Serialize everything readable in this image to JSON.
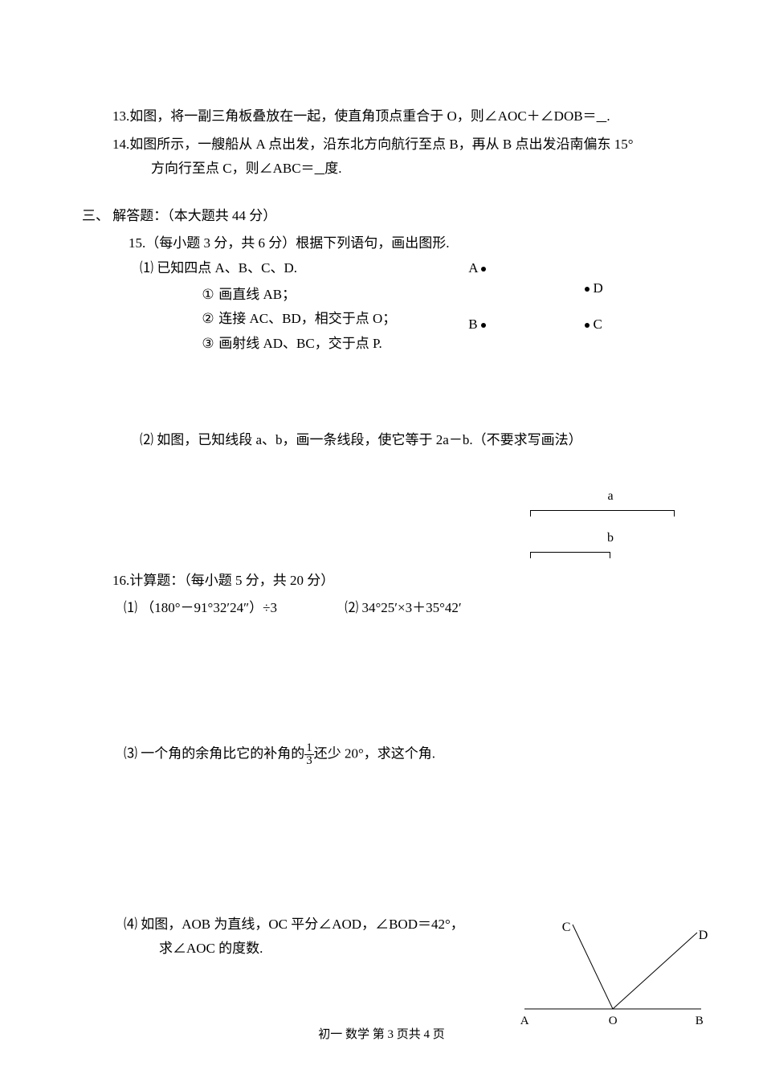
{
  "p13": "13.如图，将一副三角板叠放在一起，使直角顶点重合于 O，则∠AOC＋∠DOB＝",
  "p13_blank": "   ",
  "p13_end": ".",
  "p14_line1": "14.如图所示，一艘船从 A 点出发，沿东北方向航行至点 B，再从 B 点出发沿南偏东 15°",
  "p14_line2": "方向行至点 C，则∠ABC＝",
  "p14_blank": "   ",
  "p14_end": "度.",
  "section3": "三、    解答题：（本大题共 44 分）",
  "p15": "15.（每小题 3 分，共 6 分）根据下列语句，画出图形.",
  "p15_sub1": "⑴ 已知四点 A、B、C、D.",
  "p15_item1_num": "①",
  "p15_item1": " 画直线 AB；",
  "p15_item2_num": "②",
  "p15_item2": " 连接 AC、BD，相交于点 O；",
  "p15_item3_num": "③",
  "p15_item3": " 画射线 AD、BC，交于点 P.",
  "points": {
    "A": "A",
    "B": "B",
    "C": "C",
    "D": "D"
  },
  "p15_sub2": "⑵ 如图，已知线段 a、b，画一条线段，使它等于 2a－b.（不要求写画法）",
  "seg_a_label": "a",
  "seg_b_label": "b",
  "seg_a_width": 180,
  "seg_b_width": 100,
  "p16": "16.计算题：（每小题 5 分，共 20 分）",
  "p16_1_num": "⑴",
  "p16_1": " （180°－91°32′24″）÷3",
  "p16_2_num": "⑵",
  "p16_2": " 34°25′×3＋35°42′",
  "p16_3_num": "⑶",
  "p16_3_before": " 一个角的余角比它的补角的",
  "frac_num": "1",
  "frac_den": "3",
  "p16_3_after": "还少 20°，求这个角.",
  "p16_4_num": "⑷",
  "p16_4_line1": " 如图，AOB 为直线，OC 平分∠AOD，∠BOD＝42°，",
  "p16_4_line2": "求∠AOC 的度数.",
  "diagram_labels": {
    "A": "A",
    "O": "O",
    "B": "B",
    "C": "C",
    "D": "D"
  },
  "footer": "初一    数学    第 3 页共 4 页",
  "colors": {
    "text": "#000000",
    "bg": "#ffffff"
  }
}
